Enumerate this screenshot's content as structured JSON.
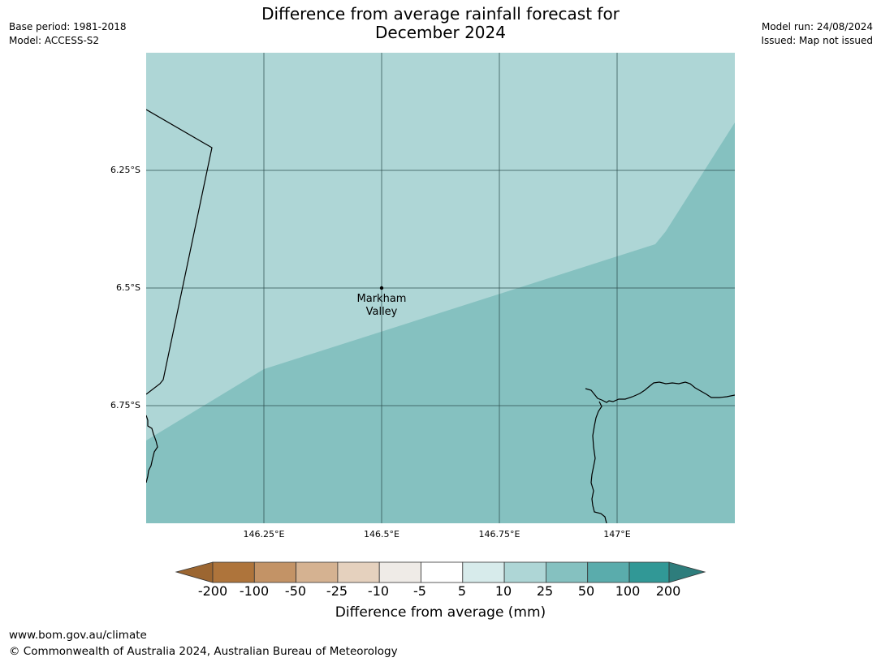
{
  "header": {
    "title_line1": "Difference from average rainfall forecast for",
    "title_line2": "December 2024",
    "base_period": "Base period: 1981-2018",
    "model": "Model: ACCESS-S2",
    "model_run": "Model run: 24/08/2024",
    "issued": "Issued: Map not issued"
  },
  "map": {
    "lat_ticks": [
      "6.25°S",
      "6.5°S",
      "6.75°S"
    ],
    "lon_ticks": [
      "146.25°E",
      "146.5°E",
      "146.75°E",
      "147°E"
    ],
    "place": {
      "name_line1": "Markham",
      "name_line2": "Valley"
    },
    "colors": {
      "class_10_25": "#aed6d6",
      "class_25_50": "#85c1c0"
    }
  },
  "colorbar": {
    "title": "Difference from average (mm)",
    "labels": [
      "-200",
      "-100",
      "-50",
      "-25",
      "-10",
      "-5",
      "5",
      "10",
      "25",
      "50",
      "100",
      "200"
    ],
    "colors": [
      "#9c6631",
      "#ae743b",
      "#c39366",
      "#d5b291",
      "#e5d1be",
      "#efebe7",
      "#ffffff",
      "#d7ebeb",
      "#aed6d6",
      "#85c1c0",
      "#5aacac",
      "#319896",
      "#2e7d7c"
    ]
  },
  "footer": {
    "url": "www.bom.gov.au/climate",
    "copyright": "© Commonwealth of Australia 2024, Australian Bureau of Meteorology"
  }
}
